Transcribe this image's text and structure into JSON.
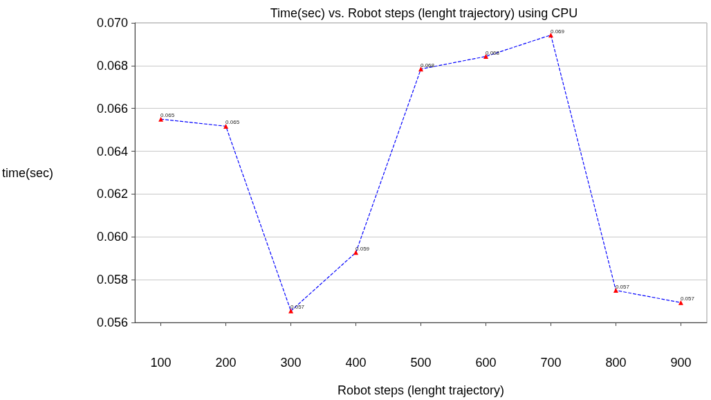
{
  "chart_data": {
    "type": "line",
    "title": "Time(sec) vs. Robot steps (lenght trajectory) using CPU",
    "xlabel": "Robot steps (lenght trajectory)",
    "ylabel": "time(sec)",
    "x": [
      100,
      200,
      300,
      400,
      500,
      600,
      700,
      800,
      900
    ],
    "series": [
      {
        "color": "#0000ff",
        "colors": [
          "#ff0000",
          "#ff0000",
          "#ff0000",
          "#ff0000",
          "#ff0000",
          "#ff0000",
          "#ff0000",
          "#ff0000",
          "#ff0000"
        ],
        "values": [
          0.0655,
          0.06517,
          0.05654,
          0.05927,
          0.06784,
          0.06843,
          0.06943,
          0.0575,
          0.05693
        ],
        "value_labels": [
          "0.065",
          "0.065",
          "0.057",
          "0.059",
          "0.068",
          "0.068",
          "0.069",
          "0.057",
          "0.057"
        ]
      }
    ],
    "xlim": [
      60,
      940
    ],
    "xticks": [
      100,
      200,
      300,
      400,
      500,
      600,
      700,
      800,
      900
    ],
    "ylim": [
      0.056,
      0.07
    ],
    "yticks": [
      {
        "value": 0.056,
        "label": "0.056"
      },
      {
        "value": 0.058,
        "label": "0.058"
      },
      {
        "value": 0.06,
        "label": "0.060"
      },
      {
        "value": 0.062,
        "label": "0.062"
      },
      {
        "value": 0.064,
        "label": "0.064"
      },
      {
        "value": 0.066,
        "label": "0.066"
      },
      {
        "value": 0.068,
        "label": "0.068"
      },
      {
        "value": 0.07,
        "label": "0.070"
      }
    ],
    "grid": "y",
    "marker": "triangle",
    "line_style": "dashed"
  }
}
